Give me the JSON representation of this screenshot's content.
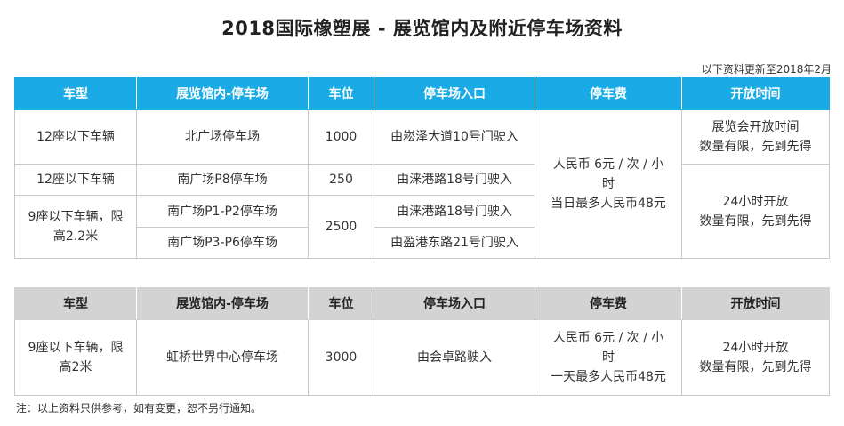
{
  "title": "2018国际橡塑展 - 展览馆内及附近停车场资料",
  "updated": "以下资料更新至2018年2月",
  "headers": [
    "车型",
    "展览馆内-停车场",
    "车位",
    "停车场入口",
    "停车费",
    "开放时间"
  ],
  "table1": {
    "r1": {
      "type": "12座以下车辆",
      "lot": "北广场停车场",
      "spaces": "1000",
      "entrance": "由崧泽大道10号门驶入",
      "hours": [
        "展览会开放时间",
        "数量有限，先到先得"
      ]
    },
    "r2": {
      "type": "12座以下车辆",
      "lot": "南广场P8停车场",
      "spaces": "250",
      "entrance": "由涞港路18号门驶入"
    },
    "r3": {
      "type": [
        "9座以下车辆，限",
        "高2.2米"
      ],
      "lot": "南广场P1-P2停车场",
      "spaces": "2500",
      "entrance": "由涞港路18号门驶入"
    },
    "r4": {
      "lot": "南广场P3-P6停车场",
      "entrance": "由盈港东路21号门驶入"
    },
    "fee": [
      "人民币 6元 / 次 / 小",
      "时",
      "当日最多人民币48元"
    ],
    "hours2": [
      "24小时开放",
      "数量有限，先到先得"
    ]
  },
  "table2": {
    "r1": {
      "type": [
        "9座以下车辆，限",
        "高2米"
      ],
      "lot": "虹桥世界中心停车场",
      "spaces": "3000",
      "entrance": "由会卓路驶入",
      "fee": [
        "人民币 6元 / 次 / 小",
        "时",
        "一天最多人民币48元"
      ],
      "hours": [
        "24小时开放",
        "数量有限，先到先得"
      ]
    }
  },
  "note": "注：以上资料只供参考，如有变更，恕不另行通知。",
  "colors": {
    "header_blue": "#1aabe6",
    "header_gray": "#d3d3d3",
    "border": "#c9c9c9"
  }
}
